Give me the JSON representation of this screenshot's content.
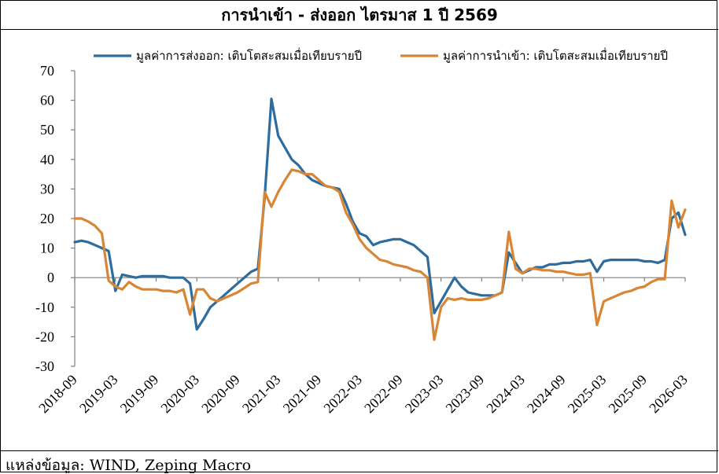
{
  "chart_data": {
    "type": "line",
    "title": "การนำเข้า - ส่งออก ไตรมาส 1 ปี 2569",
    "xlabel": "",
    "ylabel": "",
    "ylim": [
      -30,
      70
    ],
    "yticks": [
      70,
      60,
      50,
      40,
      30,
      20,
      10,
      0,
      -10,
      -20,
      -30
    ],
    "xlim": [
      "2018-09",
      "2026-03"
    ],
    "xticks": [
      "2018-09",
      "2019-03",
      "2019-09",
      "2020-03",
      "2020-09",
      "2021-03",
      "2021-09",
      "2022-03",
      "2022-09",
      "2023-03",
      "2023-09",
      "2024-03",
      "2024-09",
      "2025-03",
      "2025-09",
      "2026-03"
    ],
    "grid": false,
    "legend_position": "top",
    "series": [
      {
        "name": "มูลค่าการส่งออก: เติบโตสะสมเมื่อเทียบรายปี",
        "color": "#2E6C9E",
        "points": [
          [
            "2018-09",
            12
          ],
          [
            "2018-10",
            12.5
          ],
          [
            "2018-11",
            12
          ],
          [
            "2018-12",
            11
          ],
          [
            "2019-01",
            10
          ],
          [
            "2019-02",
            9
          ],
          [
            "2019-03",
            -4.5
          ],
          [
            "2019-04",
            1
          ],
          [
            "2019-05",
            0.5
          ],
          [
            "2019-06",
            0
          ],
          [
            "2019-07",
            0.5
          ],
          [
            "2019-08",
            0.5
          ],
          [
            "2019-09",
            0.5
          ],
          [
            "2019-10",
            0.5
          ],
          [
            "2019-11",
            0
          ],
          [
            "2019-12",
            0
          ],
          [
            "2020-01",
            0
          ],
          [
            "2020-02",
            -2
          ],
          [
            "2020-03",
            -17.5
          ],
          [
            "2020-04",
            -14
          ],
          [
            "2020-05",
            -10
          ],
          [
            "2020-06",
            -8
          ],
          [
            "2020-07",
            -6
          ],
          [
            "2020-08",
            -4
          ],
          [
            "2020-09",
            -2
          ],
          [
            "2020-10",
            0
          ],
          [
            "2020-11",
            2
          ],
          [
            "2020-12",
            3
          ],
          [
            "2021-01",
            27
          ],
          [
            "2021-02",
            60.5
          ],
          [
            "2021-03",
            48
          ],
          [
            "2021-04",
            44
          ],
          [
            "2021-05",
            40
          ],
          [
            "2021-06",
            38
          ],
          [
            "2021-07",
            35
          ],
          [
            "2021-08",
            33
          ],
          [
            "2021-09",
            32
          ],
          [
            "2021-10",
            31
          ],
          [
            "2021-11",
            30.5
          ],
          [
            "2021-12",
            30
          ],
          [
            "2022-01",
            25
          ],
          [
            "2022-02",
            19
          ],
          [
            "2022-03",
            15
          ],
          [
            "2022-04",
            14
          ],
          [
            "2022-05",
            11
          ],
          [
            "2022-06",
            12
          ],
          [
            "2022-07",
            12.5
          ],
          [
            "2022-08",
            13
          ],
          [
            "2022-09",
            13
          ],
          [
            "2022-10",
            12
          ],
          [
            "2022-11",
            11
          ],
          [
            "2022-12",
            9
          ],
          [
            "2023-01",
            7
          ],
          [
            "2023-02",
            -12
          ],
          [
            "2023-03",
            -8
          ],
          [
            "2023-04",
            -4
          ],
          [
            "2023-05",
            0
          ],
          [
            "2023-06",
            -3
          ],
          [
            "2023-07",
            -5
          ],
          [
            "2023-08",
            -5.5
          ],
          [
            "2023-09",
            -6
          ],
          [
            "2023-10",
            -6
          ],
          [
            "2023-11",
            -6
          ],
          [
            "2023-12",
            -5
          ],
          [
            "2024-01",
            8.5
          ],
          [
            "2024-02",
            5
          ],
          [
            "2024-03",
            1.5
          ],
          [
            "2024-04",
            2.5
          ],
          [
            "2024-05",
            3.5
          ],
          [
            "2024-06",
            3.5
          ],
          [
            "2024-07",
            4.5
          ],
          [
            "2024-08",
            4.5
          ],
          [
            "2024-09",
            5
          ],
          [
            "2024-10",
            5
          ],
          [
            "2024-11",
            5.5
          ],
          [
            "2024-12",
            5.5
          ],
          [
            "2025-01",
            6
          ],
          [
            "2025-02",
            2
          ],
          [
            "2025-03",
            5.5
          ],
          [
            "2025-04",
            6
          ],
          [
            "2025-05",
            6
          ],
          [
            "2025-06",
            6
          ],
          [
            "2025-07",
            6
          ],
          [
            "2025-08",
            6
          ],
          [
            "2025-09",
            5.5
          ],
          [
            "2025-10",
            5.5
          ],
          [
            "2025-11",
            5
          ],
          [
            "2025-12",
            6
          ],
          [
            "2026-01",
            20
          ],
          [
            "2026-02",
            22
          ],
          [
            "2026-03",
            14.5
          ]
        ]
      },
      {
        "name": "มูลค่าการนำเข้า: เติบโตสะสมเมื่อเทียบรายปี",
        "color": "#D88535",
        "points": [
          [
            "2018-09",
            20
          ],
          [
            "2018-10",
            20
          ],
          [
            "2018-11",
            19
          ],
          [
            "2018-12",
            17.5
          ],
          [
            "2019-01",
            15
          ],
          [
            "2019-02",
            -1
          ],
          [
            "2019-03",
            -3
          ],
          [
            "2019-04",
            -4
          ],
          [
            "2019-05",
            -1.5
          ],
          [
            "2019-06",
            -3
          ],
          [
            "2019-07",
            -4
          ],
          [
            "2019-08",
            -4
          ],
          [
            "2019-09",
            -4
          ],
          [
            "2019-10",
            -4.5
          ],
          [
            "2019-11",
            -4.5
          ],
          [
            "2019-12",
            -5
          ],
          [
            "2020-01",
            -4
          ],
          [
            "2020-02",
            -12.5
          ],
          [
            "2020-03",
            -4
          ],
          [
            "2020-04",
            -4
          ],
          [
            "2020-05",
            -7
          ],
          [
            "2020-06",
            -8
          ],
          [
            "2020-07",
            -7
          ],
          [
            "2020-08",
            -6
          ],
          [
            "2020-09",
            -5
          ],
          [
            "2020-10",
            -3.5
          ],
          [
            "2020-11",
            -2
          ],
          [
            "2020-12",
            -1.5
          ],
          [
            "2021-01",
            29
          ],
          [
            "2021-02",
            24
          ],
          [
            "2021-03",
            29
          ],
          [
            "2021-04",
            33
          ],
          [
            "2021-05",
            36.5
          ],
          [
            "2021-06",
            36
          ],
          [
            "2021-07",
            35
          ],
          [
            "2021-08",
            35
          ],
          [
            "2021-09",
            33
          ],
          [
            "2021-10",
            31
          ],
          [
            "2021-11",
            30.5
          ],
          [
            "2021-12",
            29
          ],
          [
            "2022-01",
            22
          ],
          [
            "2022-02",
            18
          ],
          [
            "2022-03",
            13
          ],
          [
            "2022-04",
            10
          ],
          [
            "2022-05",
            8
          ],
          [
            "2022-06",
            6
          ],
          [
            "2022-07",
            5.5
          ],
          [
            "2022-08",
            4.5
          ],
          [
            "2022-09",
            4
          ],
          [
            "2022-10",
            3.5
          ],
          [
            "2022-11",
            2.5
          ],
          [
            "2022-12",
            2
          ],
          [
            "2023-01",
            0
          ],
          [
            "2023-02",
            -21
          ],
          [
            "2023-03",
            -10
          ],
          [
            "2023-04",
            -7
          ],
          [
            "2023-05",
            -7.5
          ],
          [
            "2023-06",
            -7
          ],
          [
            "2023-07",
            -7.5
          ],
          [
            "2023-08",
            -7.5
          ],
          [
            "2023-09",
            -7.5
          ],
          [
            "2023-10",
            -7
          ],
          [
            "2023-11",
            -6
          ],
          [
            "2023-12",
            -5
          ],
          [
            "2024-01",
            15.5
          ],
          [
            "2024-02",
            3
          ],
          [
            "2024-03",
            1.5
          ],
          [
            "2024-04",
            3
          ],
          [
            "2024-05",
            3
          ],
          [
            "2024-06",
            2.5
          ],
          [
            "2024-07",
            2.5
          ],
          [
            "2024-08",
            2
          ],
          [
            "2024-09",
            2
          ],
          [
            "2024-10",
            1.5
          ],
          [
            "2024-11",
            1
          ],
          [
            "2024-12",
            1
          ],
          [
            "2025-01",
            1.5
          ],
          [
            "2025-02",
            -16
          ],
          [
            "2025-03",
            -8
          ],
          [
            "2025-04",
            -7
          ],
          [
            "2025-05",
            -6
          ],
          [
            "2025-06",
            -5
          ],
          [
            "2025-07",
            -4.5
          ],
          [
            "2025-08",
            -3.5
          ],
          [
            "2025-09",
            -3
          ],
          [
            "2025-10",
            -1.5
          ],
          [
            "2025-11",
            -0.5
          ],
          [
            "2025-12",
            -0.5
          ],
          [
            "2026-01",
            26
          ],
          [
            "2026-02",
            17
          ],
          [
            "2026-03",
            23
          ]
        ]
      }
    ]
  },
  "source": "แหล่งข้อมูล: WIND, Zeping Macro"
}
